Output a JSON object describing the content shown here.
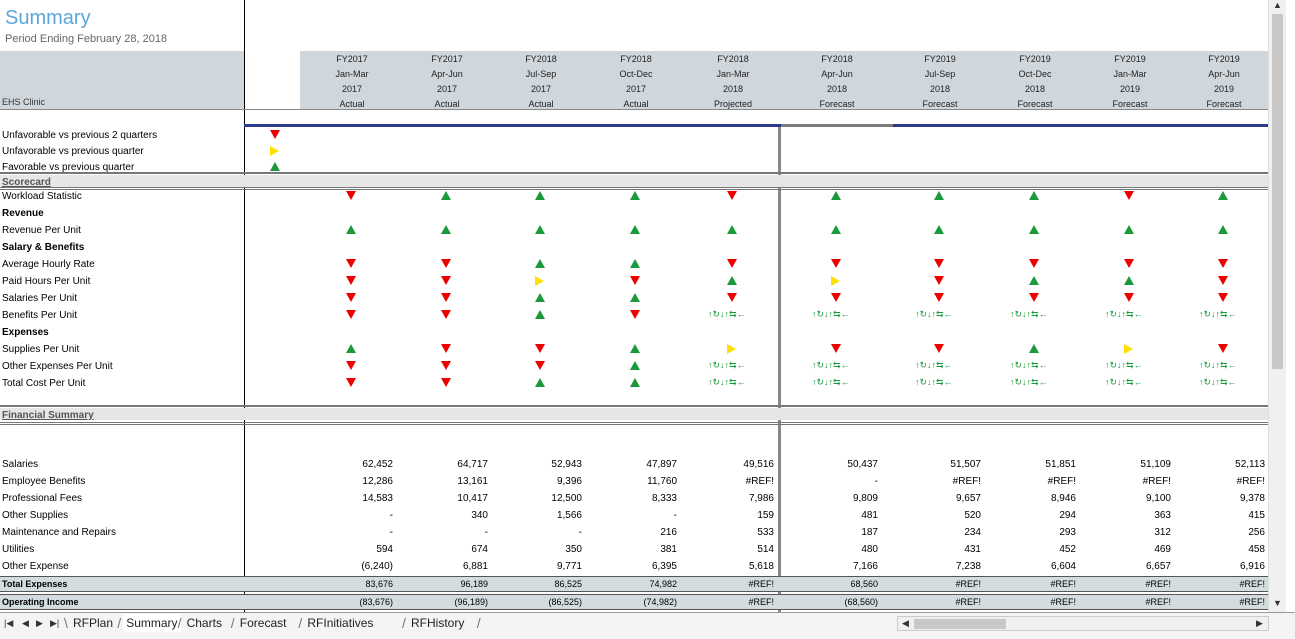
{
  "title": "Summary",
  "subtitle": "Period Ending February 28, 2018",
  "clinic_label": "EHS Clinic",
  "columns": [
    {
      "fy": "FY2017",
      "period": "Jan-Mar",
      "year": "2017",
      "status": "Actual"
    },
    {
      "fy": "FY2017",
      "period": "Apr-Jun",
      "year": "2017",
      "status": "Actual"
    },
    {
      "fy": "FY2018",
      "period": "Jul-Sep",
      "year": "2017",
      "status": "Actual"
    },
    {
      "fy": "FY2018",
      "period": "Oct-Dec",
      "year": "2017",
      "status": "Actual"
    },
    {
      "fy": "FY2018",
      "period": "Jan-Mar",
      "year": "2018",
      "status": "Projected"
    },
    {
      "fy": "FY2018",
      "period": "Apr-Jun",
      "year": "2018",
      "status": "Forecast"
    },
    {
      "fy": "FY2019",
      "period": "Jul-Sep",
      "year": "2018",
      "status": "Forecast"
    },
    {
      "fy": "FY2019",
      "period": "Oct-Dec",
      "year": "2018",
      "status": "Forecast"
    },
    {
      "fy": "FY2019",
      "period": "Jan-Mar",
      "year": "2019",
      "status": "Forecast"
    },
    {
      "fy": "FY2019",
      "period": "Apr-Jun",
      "year": "2019",
      "status": "Forecast"
    }
  ],
  "legend": [
    {
      "label": "Unfavorable vs previous 2 quarters",
      "indicator": "down"
    },
    {
      "label": "Unfavorable vs previous quarter",
      "indicator": "side"
    },
    {
      "label": "Favorable vs previous quarter",
      "indicator": "up"
    }
  ],
  "scorecard": {
    "heading": "Scorecard",
    "rows": [
      {
        "label": "Workload Statistic",
        "bold": false,
        "values": [
          "down",
          "up",
          "up",
          "up",
          "down",
          "up",
          "up",
          "up",
          "down",
          "up"
        ]
      },
      {
        "label": "Revenue",
        "bold": true,
        "values": []
      },
      {
        "label": "Revenue Per Unit",
        "bold": false,
        "values": [
          "up",
          "up",
          "up",
          "up",
          "up",
          "up",
          "up",
          "up",
          "up",
          "up"
        ]
      },
      {
        "label": "Salary & Benefits",
        "bold": true,
        "values": []
      },
      {
        "label": "Average Hourly Rate",
        "bold": false,
        "values": [
          "down",
          "down",
          "up",
          "up",
          "down",
          "down",
          "down",
          "down",
          "down",
          "down"
        ]
      },
      {
        "label": "Paid Hours Per Unit",
        "bold": false,
        "values": [
          "down",
          "down",
          "side",
          "down",
          "up",
          "side",
          "down",
          "up",
          "up",
          "down"
        ]
      },
      {
        "label": "Salaries Per Unit",
        "bold": false,
        "values": [
          "down",
          "down",
          "up",
          "up",
          "down",
          "down",
          "down",
          "down",
          "down",
          "down"
        ]
      },
      {
        "label": "Benefits Per Unit",
        "bold": false,
        "values": [
          "down",
          "down",
          "up",
          "down",
          "err",
          "err",
          "err",
          "err",
          "err",
          "err"
        ]
      },
      {
        "label": "Expenses",
        "bold": true,
        "values": []
      },
      {
        "label": "Supplies Per Unit",
        "bold": false,
        "values": [
          "up",
          "down",
          "down",
          "up",
          "side",
          "down",
          "down",
          "up",
          "side",
          "down"
        ]
      },
      {
        "label": "Other Expenses Per Unit",
        "bold": false,
        "values": [
          "down",
          "down",
          "down",
          "up",
          "err",
          "err",
          "err",
          "err",
          "err",
          "err"
        ]
      },
      {
        "label": "Total Cost Per Unit",
        "bold": false,
        "values": [
          "down",
          "down",
          "up",
          "up",
          "err",
          "err",
          "err",
          "err",
          "err",
          "err"
        ]
      }
    ],
    "error_glyph": "↑↻↓↑⇆←"
  },
  "financial": {
    "heading": "Financial Summary",
    "rows": [
      {
        "label": "Salaries",
        "values": [
          "62,452",
          "64,717",
          "52,943",
          "47,897",
          "49,516",
          "50,437",
          "51,507",
          "51,851",
          "51,109",
          "52,113"
        ]
      },
      {
        "label": "Employee Benefits",
        "values": [
          "12,286",
          "13,161",
          "9,396",
          "11,760",
          "#REF!",
          "-",
          "#REF!",
          "#REF!",
          "#REF!",
          "#REF!"
        ]
      },
      {
        "label": "Professional Fees",
        "values": [
          "14,583",
          "10,417",
          "12,500",
          "8,333",
          "7,986",
          "9,809",
          "9,657",
          "8,946",
          "9,100",
          "9,378"
        ]
      },
      {
        "label": "Other Supplies",
        "values": [
          "-",
          "340",
          "1,566",
          "-",
          "159",
          "481",
          "520",
          "294",
          "363",
          "415"
        ]
      },
      {
        "label": "Maintenance and Repairs",
        "values": [
          "-",
          "-",
          "-",
          "216",
          "533",
          "187",
          "234",
          "293",
          "312",
          "256"
        ]
      },
      {
        "label": "Utilities",
        "values": [
          "594",
          "674",
          "350",
          "381",
          "514",
          "480",
          "431",
          "452",
          "469",
          "458"
        ]
      },
      {
        "label": "Other Expense",
        "values": [
          "(6,240)",
          "6,881",
          "9,771",
          "6,395",
          "5,618",
          "7,166",
          "7,238",
          "6,604",
          "6,657",
          "6,916"
        ]
      }
    ],
    "totals": [
      {
        "label": "Total Expenses",
        "values": [
          "83,676",
          "96,189",
          "86,525",
          "74,982",
          "#REF!",
          "68,560",
          "#REF!",
          "#REF!",
          "#REF!",
          "#REF!"
        ]
      },
      {
        "label": "Operating Income",
        "values": [
          "(83,676)",
          "(96,189)",
          "(86,525)",
          "(74,982)",
          "#REF!",
          "(68,560)",
          "#REF!",
          "#REF!",
          "#REF!",
          "#REF!"
        ]
      }
    ]
  },
  "tabs": [
    {
      "label": "RFPlan",
      "selected": false
    },
    {
      "label": "Summary",
      "selected": true
    },
    {
      "label": "Charts",
      "selected": false
    },
    {
      "label": "Forecast",
      "selected": false
    },
    {
      "label": "RFInitiatives",
      "selected": false
    },
    {
      "label": "RFHistory",
      "selected": false
    }
  ],
  "colors": {
    "up": "#1a9a3a",
    "down": "#e00000",
    "side": "#ffe000",
    "title": "#5aa7d8",
    "header_bg": "#d0d7dc"
  }
}
